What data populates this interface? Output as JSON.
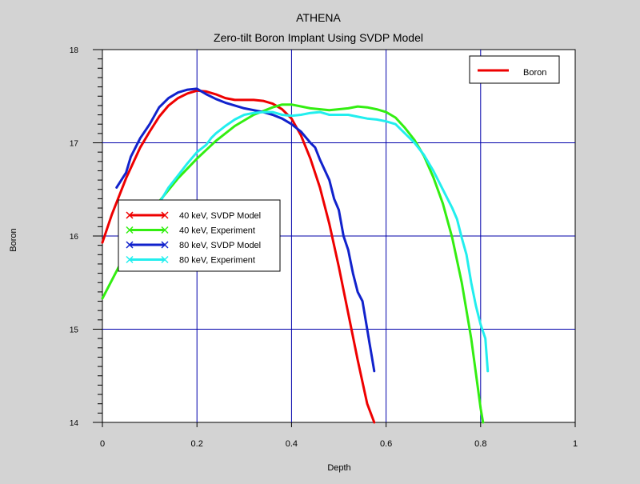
{
  "chart_data": {
    "type": "line",
    "app_title": "ATHENA",
    "title": "Zero-tilt Boron Implant  Using SVDP Model",
    "xlabel": "Depth",
    "ylabel": "Boron",
    "xlim": [
      0,
      1
    ],
    "ylim": [
      14,
      18
    ],
    "xticks": [
      0,
      0.2,
      0.4,
      0.6,
      0.8,
      1
    ],
    "xtick_labels": [
      "0",
      "0.2",
      "0.4",
      "0.6",
      "0.8",
      "1"
    ],
    "yticks": [
      14,
      15,
      16,
      17,
      18
    ],
    "ytick_labels": [
      "14",
      "15",
      "16",
      "17",
      "18"
    ],
    "grid": true,
    "top_legend": {
      "label": "Boron",
      "color": "#ee0000",
      "placement": "top-right"
    },
    "legend_placement": "left",
    "series": [
      {
        "name": "40 keV, SVDP Model",
        "color": "#ee0000",
        "x": [
          0.0,
          0.02,
          0.05,
          0.08,
          0.1,
          0.12,
          0.14,
          0.16,
          0.18,
          0.2,
          0.22,
          0.24,
          0.26,
          0.28,
          0.3,
          0.32,
          0.34,
          0.36,
          0.38,
          0.4,
          0.42,
          0.44,
          0.46,
          0.48,
          0.5,
          0.52,
          0.54,
          0.56,
          0.575
        ],
        "y": [
          15.93,
          16.23,
          16.62,
          16.95,
          17.12,
          17.28,
          17.4,
          17.48,
          17.53,
          17.56,
          17.55,
          17.52,
          17.48,
          17.46,
          17.46,
          17.46,
          17.45,
          17.42,
          17.36,
          17.26,
          17.08,
          16.83,
          16.52,
          16.13,
          15.67,
          15.17,
          14.67,
          14.2,
          14.0
        ]
      },
      {
        "name": "40 keV, Experiment",
        "color": "#33ee11",
        "x": [
          0.0,
          0.04,
          0.08,
          0.12,
          0.16,
          0.2,
          0.24,
          0.28,
          0.32,
          0.36,
          0.38,
          0.4,
          0.44,
          0.48,
          0.52,
          0.54,
          0.56,
          0.58,
          0.6,
          0.62,
          0.64,
          0.66,
          0.68,
          0.7,
          0.72,
          0.74,
          0.76,
          0.78,
          0.8,
          0.805
        ],
        "y": [
          15.33,
          15.72,
          16.05,
          16.37,
          16.62,
          16.83,
          17.02,
          17.18,
          17.3,
          17.38,
          17.41,
          17.41,
          17.37,
          17.35,
          17.37,
          17.39,
          17.38,
          17.36,
          17.33,
          17.27,
          17.16,
          17.03,
          16.86,
          16.63,
          16.35,
          15.98,
          15.5,
          14.9,
          14.15,
          14.0
        ]
      },
      {
        "name": "80 keV, SVDP Model",
        "color": "#1122cc",
        "x": [
          0.03,
          0.05,
          0.06,
          0.07,
          0.08,
          0.1,
          0.12,
          0.14,
          0.16,
          0.18,
          0.2,
          0.22,
          0.24,
          0.26,
          0.28,
          0.3,
          0.32,
          0.34,
          0.36,
          0.38,
          0.4,
          0.42,
          0.44,
          0.45,
          0.46,
          0.48,
          0.49,
          0.5,
          0.51,
          0.52,
          0.53,
          0.54,
          0.55,
          0.56,
          0.565,
          0.57,
          0.575
        ],
        "y": [
          16.52,
          16.68,
          16.85,
          16.95,
          17.05,
          17.2,
          17.38,
          17.48,
          17.54,
          17.57,
          17.58,
          17.52,
          17.47,
          17.43,
          17.4,
          17.37,
          17.35,
          17.33,
          17.3,
          17.26,
          17.2,
          17.12,
          17.0,
          16.95,
          16.82,
          16.6,
          16.4,
          16.28,
          16.0,
          15.85,
          15.6,
          15.4,
          15.3,
          15.0,
          14.85,
          14.7,
          14.55
        ]
      },
      {
        "name": "80 keV, Experiment",
        "color": "#22eeee",
        "x": [
          0.1,
          0.12,
          0.14,
          0.16,
          0.18,
          0.2,
          0.22,
          0.23,
          0.24,
          0.26,
          0.28,
          0.3,
          0.32,
          0.34,
          0.36,
          0.38,
          0.4,
          0.42,
          0.44,
          0.46,
          0.48,
          0.5,
          0.52,
          0.54,
          0.56,
          0.58,
          0.6,
          0.62,
          0.64,
          0.66,
          0.68,
          0.7,
          0.72,
          0.74,
          0.75,
          0.76,
          0.77,
          0.78,
          0.79,
          0.8,
          0.81,
          0.815
        ],
        "y": [
          16.15,
          16.35,
          16.52,
          16.65,
          16.78,
          16.9,
          16.98,
          17.05,
          17.1,
          17.18,
          17.25,
          17.3,
          17.32,
          17.33,
          17.33,
          17.3,
          17.29,
          17.3,
          17.32,
          17.33,
          17.3,
          17.3,
          17.3,
          17.28,
          17.26,
          17.25,
          17.23,
          17.2,
          17.1,
          17.0,
          16.87,
          16.7,
          16.5,
          16.3,
          16.18,
          15.98,
          15.8,
          15.5,
          15.25,
          15.05,
          14.9,
          14.55
        ]
      }
    ]
  }
}
